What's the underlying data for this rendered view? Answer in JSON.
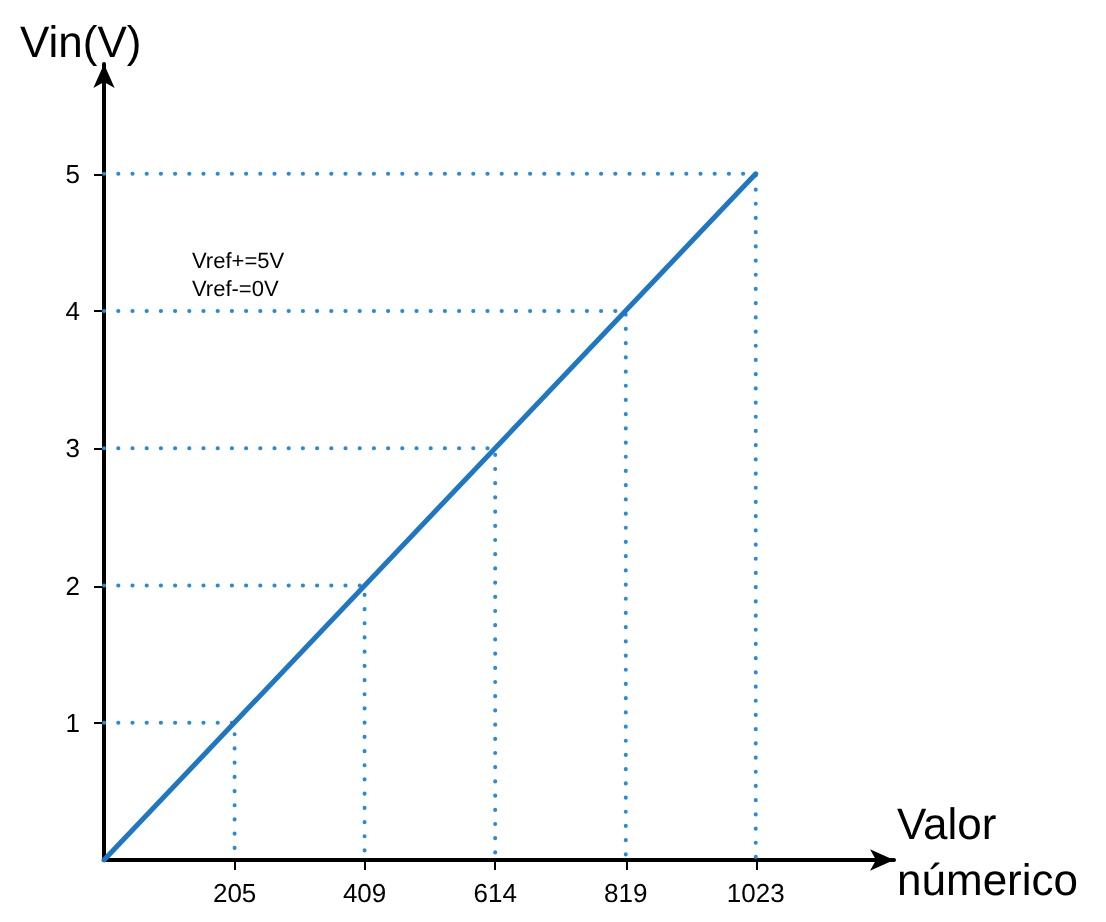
{
  "chart_data": {
    "type": "line",
    "xlabel": "Valor\nnúmerico",
    "ylabel": "Vin(V)",
    "annotations": [
      "Vref+=5V",
      "Vref-=0V"
    ],
    "xlim": [
      0,
      1240
    ],
    "xticks": [
      205,
      409,
      614,
      819,
      1023
    ],
    "ylim": [
      0,
      5.8
    ],
    "yticks": [
      1,
      2,
      3,
      4,
      5
    ],
    "grid": false,
    "marker": "none",
    "series": [
      {
        "color": "#1f77c4",
        "x": [
          0,
          1023
        ],
        "values": [
          0,
          5
        ],
        "line_style": "solid"
      },
      {
        "color": "#2a8ad4",
        "line_style": "dotted",
        "x": [
          0,
          205,
          205,
          null,
          0,
          409,
          409,
          null,
          0,
          614,
          614,
          null,
          0,
          819,
          819,
          null,
          0,
          1023,
          1023
        ],
        "values": [
          1,
          1,
          0,
          null,
          2,
          2,
          0,
          null,
          3,
          3,
          0,
          null,
          4,
          4,
          0,
          null,
          5,
          5,
          0
        ]
      }
    ]
  }
}
